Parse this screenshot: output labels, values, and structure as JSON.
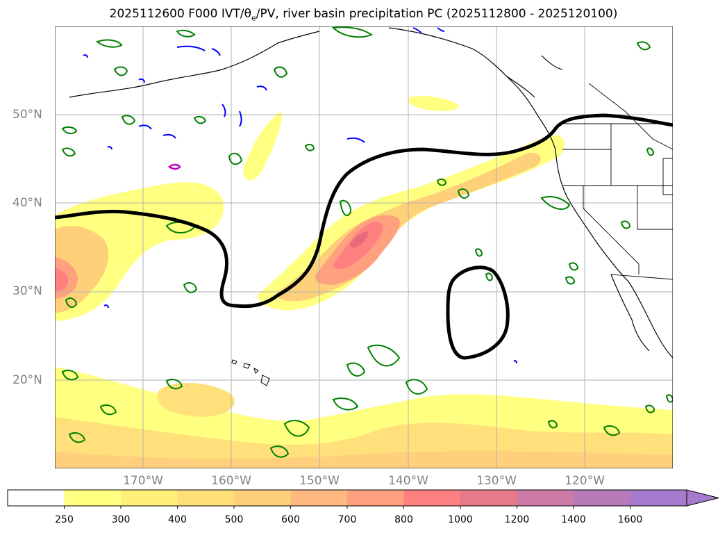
{
  "title": {
    "prefix": "2025112600 F000 IVT/",
    "theta": "θ",
    "theta_sub": "e",
    "suffix": "/PV, river basin precipitation PC (2025112800 - 2025120100)"
  },
  "axes": {
    "lat_labels": [
      "50°N",
      "40°N",
      "30°N",
      "20°N"
    ],
    "lon_labels": [
      "170°W",
      "160°W",
      "150°W",
      "140°W",
      "130°W",
      "120°W"
    ],
    "lat_range": [
      10,
      60
    ],
    "lon_range": [
      -180,
      -110
    ]
  },
  "colorbar": {
    "labels": [
      "250",
      "300",
      "400",
      "500",
      "600",
      "700",
      "800",
      "1000",
      "1200",
      "1400",
      "1600"
    ],
    "colors": [
      "#ffffff",
      "#ffff80",
      "#fff07a",
      "#ffe078",
      "#ffd07a",
      "#ffb880",
      "#ffa07e",
      "#ff8080",
      "#e67a8a",
      "#cc7aa6",
      "#b87ab8",
      "#a67acc"
    ],
    "extend": "max"
  },
  "colors": {
    "ivt_low": "#ffff80",
    "ivt_mid": "#ffd27a",
    "ivt_high": "#ff8080",
    "ivt_peak": "#e66a7a",
    "pv_contour": "#008000",
    "theta_contour_blue": "#0000ff",
    "theta_contour_magenta": "#c000c0",
    "jet_line": "#000000",
    "grid": "#b0b0b0"
  }
}
